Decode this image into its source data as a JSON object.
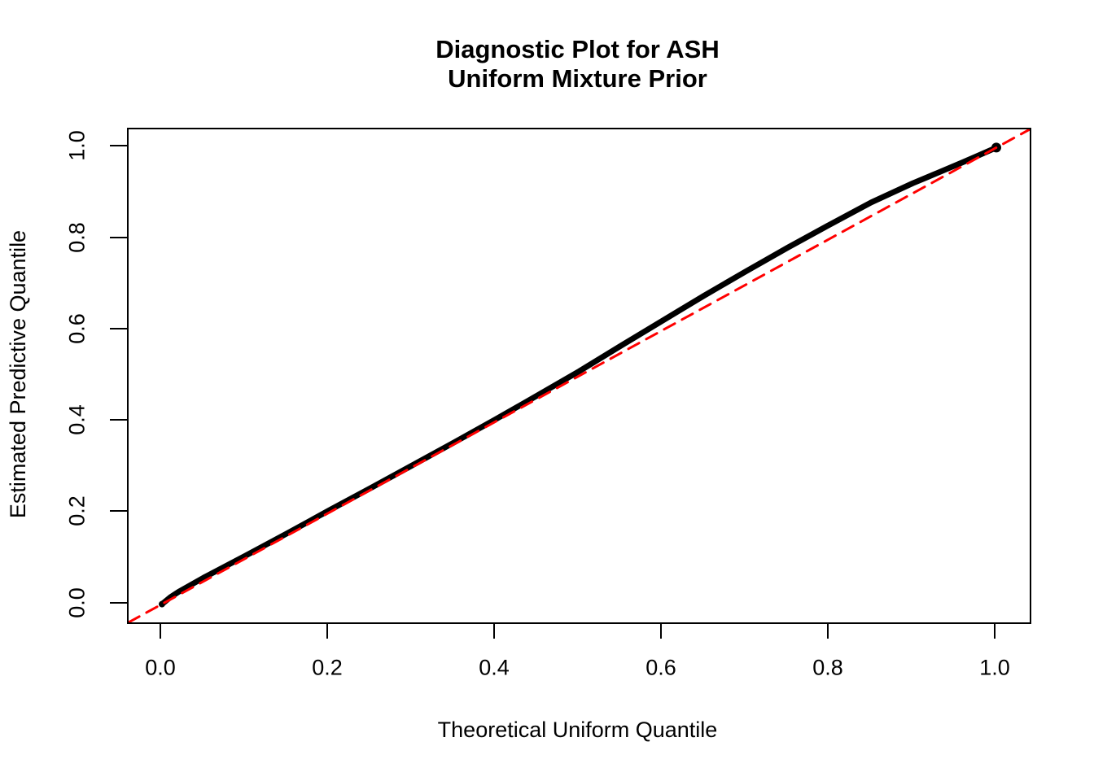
{
  "figure": {
    "background": "#ffffff",
    "frame_color": "#000000"
  },
  "chart_data": {
    "type": "line",
    "title_lines": [
      "Diagnostic Plot for ASH",
      "Uniform Mixture Prior"
    ],
    "xlabel": "Theoretical Uniform Quantile",
    "ylabel": "Estimated Predictive Quantile",
    "xlim": [
      -0.04,
      1.04
    ],
    "ylim": [
      -0.04,
      1.04
    ],
    "x_ticks": [
      {
        "value": 0.0,
        "label": "0.0"
      },
      {
        "value": 0.2,
        "label": "0.2"
      },
      {
        "value": 0.4,
        "label": "0.4"
      },
      {
        "value": 0.6,
        "label": "0.6"
      },
      {
        "value": 0.8,
        "label": "0.8"
      },
      {
        "value": 1.0,
        "label": "1.0"
      }
    ],
    "y_ticks": [
      {
        "value": 0.0,
        "label": "0.0"
      },
      {
        "value": 0.2,
        "label": "0.2"
      },
      {
        "value": 0.4,
        "label": "0.4"
      },
      {
        "value": 0.6,
        "label": "0.6"
      },
      {
        "value": 0.8,
        "label": "0.8"
      },
      {
        "value": 1.0,
        "label": "1.0"
      }
    ],
    "grid": false,
    "legend": null,
    "series": [
      {
        "name": "ash-estimated-predictive-quantiles",
        "type": "point-curve",
        "color": "#000000",
        "stroke_width": 7,
        "points": [
          [
            0.0,
            0.0
          ],
          [
            0.01,
            0.015
          ],
          [
            0.02,
            0.027
          ],
          [
            0.05,
            0.058
          ],
          [
            0.1,
            0.106
          ],
          [
            0.15,
            0.155
          ],
          [
            0.2,
            0.205
          ],
          [
            0.25,
            0.254
          ],
          [
            0.3,
            0.304
          ],
          [
            0.35,
            0.354
          ],
          [
            0.4,
            0.405
          ],
          [
            0.45,
            0.457
          ],
          [
            0.5,
            0.51
          ],
          [
            0.55,
            0.566
          ],
          [
            0.6,
            0.621
          ],
          [
            0.65,
            0.676
          ],
          [
            0.7,
            0.729
          ],
          [
            0.75,
            0.781
          ],
          [
            0.8,
            0.831
          ],
          [
            0.85,
            0.88
          ],
          [
            0.9,
            0.922
          ],
          [
            0.93,
            0.945
          ],
          [
            0.96,
            0.968
          ],
          [
            0.98,
            0.984
          ],
          [
            1.0,
            1.0
          ]
        ]
      },
      {
        "name": "identity-reference-line",
        "type": "dashed-line",
        "color": "#FF0000",
        "stroke_width": 3,
        "dash": [
          15,
          10
        ],
        "points": [
          [
            -0.04,
            -0.04
          ],
          [
            1.04,
            1.04
          ]
        ]
      }
    ]
  }
}
